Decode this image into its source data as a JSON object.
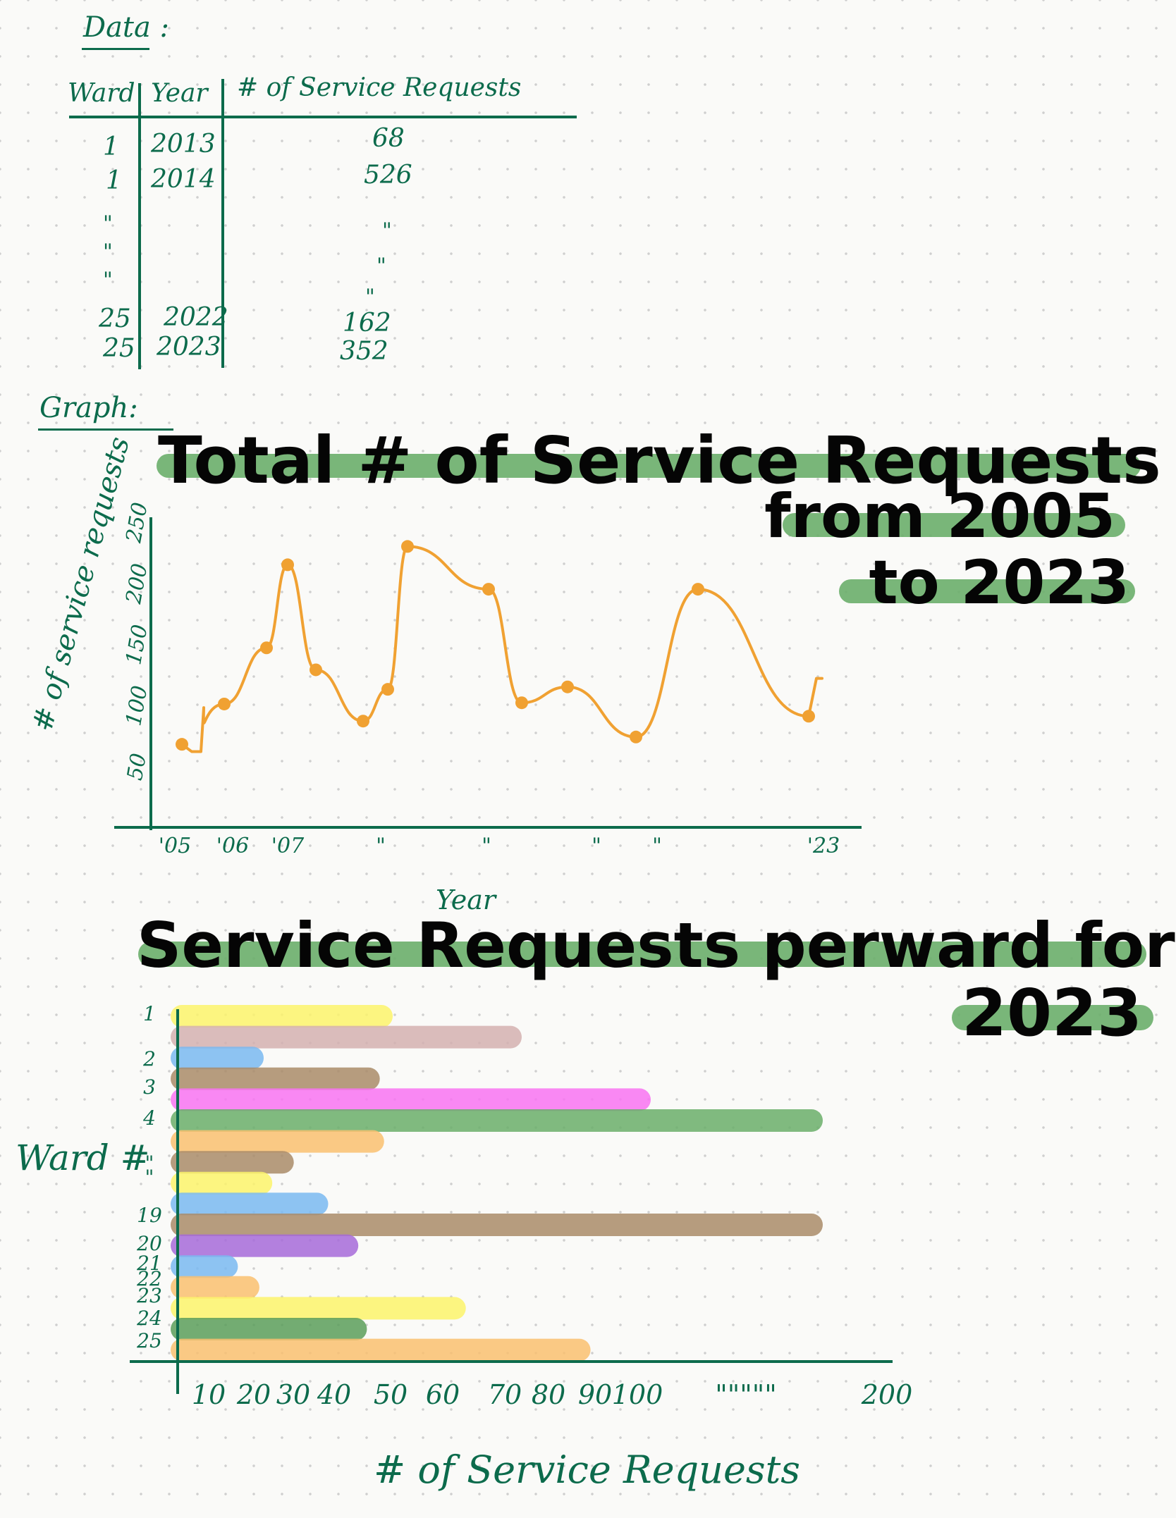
{
  "data_section": {
    "heading": "Data :",
    "table": {
      "headers": [
        "Ward",
        "Year",
        "# of Service Requests"
      ],
      "rows": [
        [
          "1",
          "2013",
          "68"
        ],
        [
          "1",
          "2014",
          "526"
        ],
        [
          "25",
          "2022",
          "162"
        ],
        [
          "25",
          "2023",
          "352"
        ]
      ],
      "ditto_mark": "\""
    }
  },
  "graph_section": {
    "heading": "Graph:"
  },
  "chart_data": [
    {
      "type": "line",
      "title": "Total # of Service Requests from 2005 to 2023",
      "title_lines": [
        "Total # of Service Requests",
        "from 2005",
        "to 2023"
      ],
      "xlabel": "Year",
      "ylabel": "# of service requests",
      "yticks": [
        "50",
        "100",
        "150",
        "200",
        "250"
      ],
      "ylim": [
        0,
        250
      ],
      "xtick_labels": [
        "'05",
        "'06",
        "'07",
        "\"",
        "\"",
        "\"",
        "\"",
        "'23"
      ],
      "series": [
        {
          "values": [
            68,
            101,
            147,
            215,
            129,
            87,
            113,
            230,
            195,
            102,
            115,
            74,
            195,
            91
          ]
        }
      ],
      "line_color": "#f0a132",
      "highlight_color": "#6aae6a"
    },
    {
      "type": "bar",
      "orientation": "horizontal",
      "title": "Service Requests perward for 2023",
      "title_lines": [
        "Service Requests perward for",
        "2023"
      ],
      "xlabel": "# of Service Requests",
      "ylabel": "Ward #",
      "ytick_labels": [
        "1",
        "2",
        "3",
        "4",
        "\"",
        "\"",
        "19",
        "20",
        "21",
        "22",
        "23",
        "24",
        "25"
      ],
      "xtick_labels": [
        "10",
        "20",
        "30",
        "40",
        "50",
        "60",
        "70",
        "80",
        "90",
        "100",
        "\"\"\"\"\"",
        "200"
      ],
      "values": [
        50,
        80,
        20,
        47,
        110,
        150,
        48,
        27,
        22,
        35,
        150,
        42,
        14,
        19,
        67,
        44,
        96
      ],
      "colors": [
        "#fbf36b",
        "#d4b0b0",
        "#79b8f1",
        "#a98b68",
        "#f873f2",
        "#6aae6a",
        "#f9c070",
        "#a98b68",
        "#fbf36b",
        "#79b8f1",
        "#a98b68",
        "#a66ad9",
        "#79b8f1",
        "#f9c070",
        "#fbf36b",
        "#5a9e5a",
        "#f9c070"
      ]
    }
  ]
}
